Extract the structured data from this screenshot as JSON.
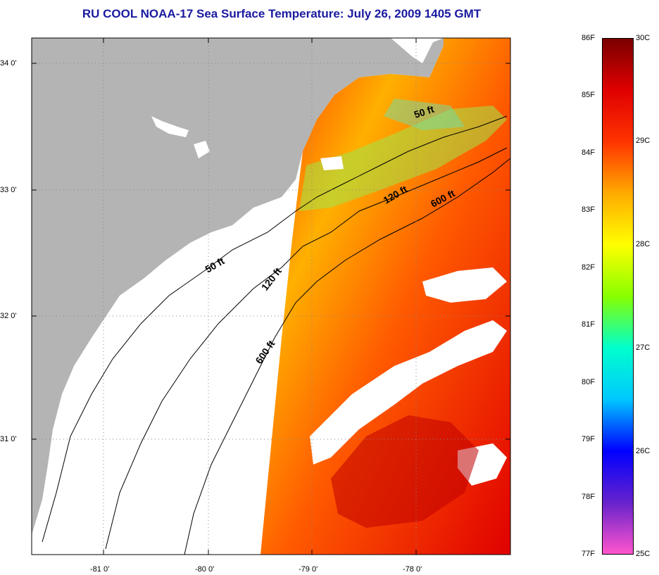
{
  "title": "RU COOL  NOAA-17  Sea Surface Temperature:  July 26, 2009 1405 GMT",
  "lat_labels": [
    "34 0'",
    "33 0'",
    "32 0'",
    "31 0'"
  ],
  "lon_labels": [
    "-81 0'",
    "-80 0'",
    "-79 0'",
    "-78 0'"
  ],
  "contour_labels": [
    "50 ft",
    "120 ft",
    "600 ft",
    "50 ft",
    "120 ft",
    "600 ft"
  ],
  "colorbar": {
    "f_labels": [
      "86F",
      "85F",
      "84F",
      "83F",
      "82F",
      "81F",
      "80F",
      "79F",
      "78F",
      "77F"
    ],
    "c_labels": [
      "30C",
      "29C",
      "28C",
      "27C",
      "26C",
      "25C"
    ],
    "colors": [
      "#ff55cc",
      "#6622cc",
      "#0000ff",
      "#00c8ff",
      "#00ffcc",
      "#88ff00",
      "#ffff00",
      "#ffaa00",
      "#ff3300",
      "#e00000",
      "#7a0000"
    ]
  },
  "colors": {
    "land": "#b4b4b4",
    "title": "#1a1aa0"
  }
}
